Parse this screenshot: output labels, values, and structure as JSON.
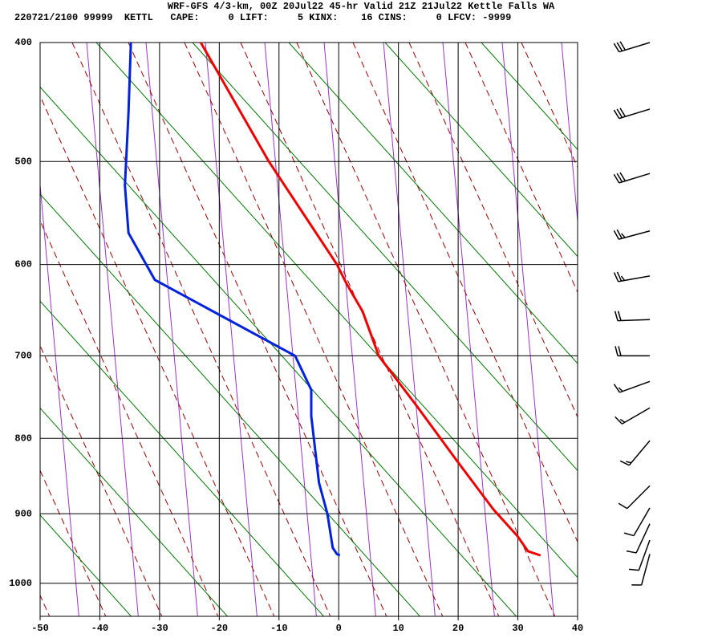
{
  "chart_data": {
    "type": "skewt",
    "title": "WRF-GFS 4/3-km, 00Z 20Jul22 45-hr Valid 21Z 21Jul22 Kettle Falls WA",
    "subtitle": "220721/2100 99999  KETTL   CAPE:     0 LIFT:     5 KINX:    16 CINS:     0 LFCV: -9999",
    "xlim": [
      -50,
      40
    ],
    "xticks": [
      -50,
      -40,
      -30,
      -20,
      -10,
      0,
      10,
      20,
      30,
      40
    ],
    "ylim": [
      400,
      1050
    ],
    "yticks": [
      400,
      500,
      600,
      700,
      800,
      900,
      1000
    ],
    "grid": true,
    "series": [
      {
        "color": "#ee0000",
        "x": [
          -23.1,
          -11.7,
          -0.3,
          1.3,
          4.0,
          6.7,
          13.1,
          19.9,
          25.9,
          29.9,
          31.7,
          33.8
        ],
        "values": [
          400,
          500,
          600,
          620,
          650,
          700,
          760,
          830,
          894,
          931,
          953,
          959
        ]
      },
      {
        "color": "#0022dd",
        "x": [
          -34.8,
          -35.2,
          -35.6,
          -35.8,
          -35.2,
          -30.8,
          -7.3,
          -4.6,
          -4.6,
          -3.3,
          -1.9,
          -1.0,
          -0.3,
          0.2
        ],
        "values": [
          400,
          457,
          500,
          522,
          568,
          616,
          700,
          740,
          772,
          858,
          900,
          948,
          957,
          959
        ]
      }
    ],
    "wind": {
      "pressure": [
        400,
        454,
        511,
        566,
        612,
        659,
        700,
        730,
        762,
        803,
        862,
        892,
        914,
        937,
        957
      ],
      "direction": [
        253,
        253,
        253,
        255,
        260,
        268,
        270,
        250,
        240,
        220,
        225,
        210,
        205,
        200,
        195
      ],
      "speed": [
        30,
        30,
        30,
        25,
        25,
        20,
        20,
        15,
        15,
        15,
        10,
        10,
        10,
        10,
        10
      ]
    }
  }
}
